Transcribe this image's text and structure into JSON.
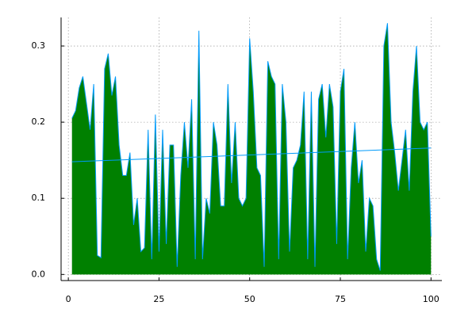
{
  "chart_data": {
    "type": "area",
    "series": [
      {
        "color": "#008000",
        "line_color": "#009afa",
        "x": [
          1,
          2,
          3,
          4,
          5,
          6,
          7,
          8,
          9,
          10,
          11,
          12,
          13,
          14,
          15,
          16,
          17,
          18,
          19,
          20,
          21,
          22,
          23,
          24,
          25,
          26,
          27,
          28,
          29,
          30,
          31,
          32,
          33,
          34,
          35,
          36,
          37,
          38,
          39,
          40,
          41,
          42,
          43,
          44,
          45,
          46,
          47,
          48,
          49,
          50,
          51,
          52,
          53,
          54,
          55,
          56,
          57,
          58,
          59,
          60,
          61,
          62,
          63,
          64,
          65,
          66,
          67,
          68,
          69,
          70,
          71,
          72,
          73,
          74,
          75,
          76,
          77,
          78,
          79,
          80,
          81,
          82,
          83,
          84,
          85,
          86,
          87,
          88,
          89,
          90,
          91,
          92,
          93,
          94,
          95,
          96,
          97,
          98,
          99,
          100
        ],
        "values": [
          0.205,
          0.215,
          0.245,
          0.26,
          0.225,
          0.19,
          0.25,
          0.025,
          0.022,
          0.27,
          0.29,
          0.235,
          0.26,
          0.17,
          0.13,
          0.13,
          0.16,
          0.065,
          0.1,
          0.03,
          0.035,
          0.19,
          0.02,
          0.21,
          0.03,
          0.19,
          0.04,
          0.17,
          0.17,
          0.01,
          0.13,
          0.2,
          0.14,
          0.23,
          0.02,
          0.32,
          0.02,
          0.1,
          0.08,
          0.2,
          0.17,
          0.09,
          0.09,
          0.25,
          0.12,
          0.2,
          0.1,
          0.09,
          0.1,
          0.31,
          0.24,
          0.14,
          0.13,
          0.01,
          0.28,
          0.26,
          0.25,
          0.02,
          0.25,
          0.2,
          0.03,
          0.14,
          0.15,
          0.17,
          0.24,
          0.02,
          0.24,
          0.01,
          0.23,
          0.25,
          0.18,
          0.25,
          0.22,
          0.04,
          0.24,
          0.27,
          0.02,
          0.14,
          0.2,
          0.12,
          0.15,
          0.03,
          0.1,
          0.09,
          0.02,
          0.005,
          0.3,
          0.33,
          0.2,
          0.16,
          0.11,
          0.15,
          0.19,
          0.11,
          0.24,
          0.3,
          0.2,
          0.19,
          0.2,
          0.05
        ]
      },
      {
        "type": "line",
        "color": "#009afa",
        "x": [
          1,
          100
        ],
        "values": [
          0.148,
          0.166
        ]
      }
    ],
    "xlim": [
      -2,
      103
    ],
    "ylim": [
      -0.008,
      0.3375
    ],
    "xticks": [
      0,
      25,
      50,
      75,
      100
    ],
    "yticks": [
      {
        "value": 0,
        "label": "0.0"
      },
      0.1,
      0.2,
      0.3
    ],
    "grid": true
  }
}
